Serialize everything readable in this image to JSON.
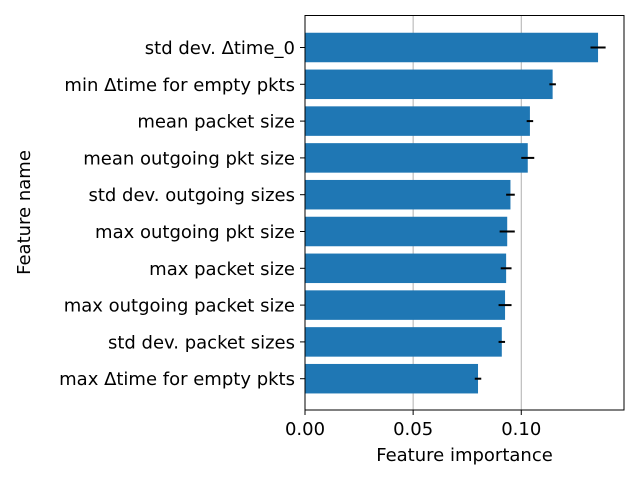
{
  "chart_data": {
    "type": "bar",
    "orientation": "horizontal",
    "title": "",
    "xlabel": "Feature importance",
    "ylabel": "Feature name",
    "xlim": [
      0.0,
      0.1475
    ],
    "xticks": [
      0.0,
      0.05,
      0.1
    ],
    "xtick_labels": [
      "0.00",
      "0.05",
      "0.10"
    ],
    "grid": "vertical",
    "colors": {
      "bar": "#1f77b4",
      "error": "#000000",
      "grid": "#b0b0b0"
    },
    "categories": [
      "std dev. Δtime_0",
      "min Δtime for empty pkts",
      "mean packet size",
      "mean outgoing pkt size",
      "std dev. outgoing sizes",
      "max outgoing pkt size",
      "max packet size",
      "max outgoing packet size",
      "std dev. packet sizes",
      "max Δtime for empty pkts"
    ],
    "values": [
      0.1355,
      0.1145,
      0.104,
      0.103,
      0.095,
      0.0935,
      0.093,
      0.0925,
      0.091,
      0.08
    ],
    "errors": [
      0.0035,
      0.0015,
      0.0015,
      0.003,
      0.002,
      0.0035,
      0.0025,
      0.003,
      0.0015,
      0.0015
    ]
  }
}
